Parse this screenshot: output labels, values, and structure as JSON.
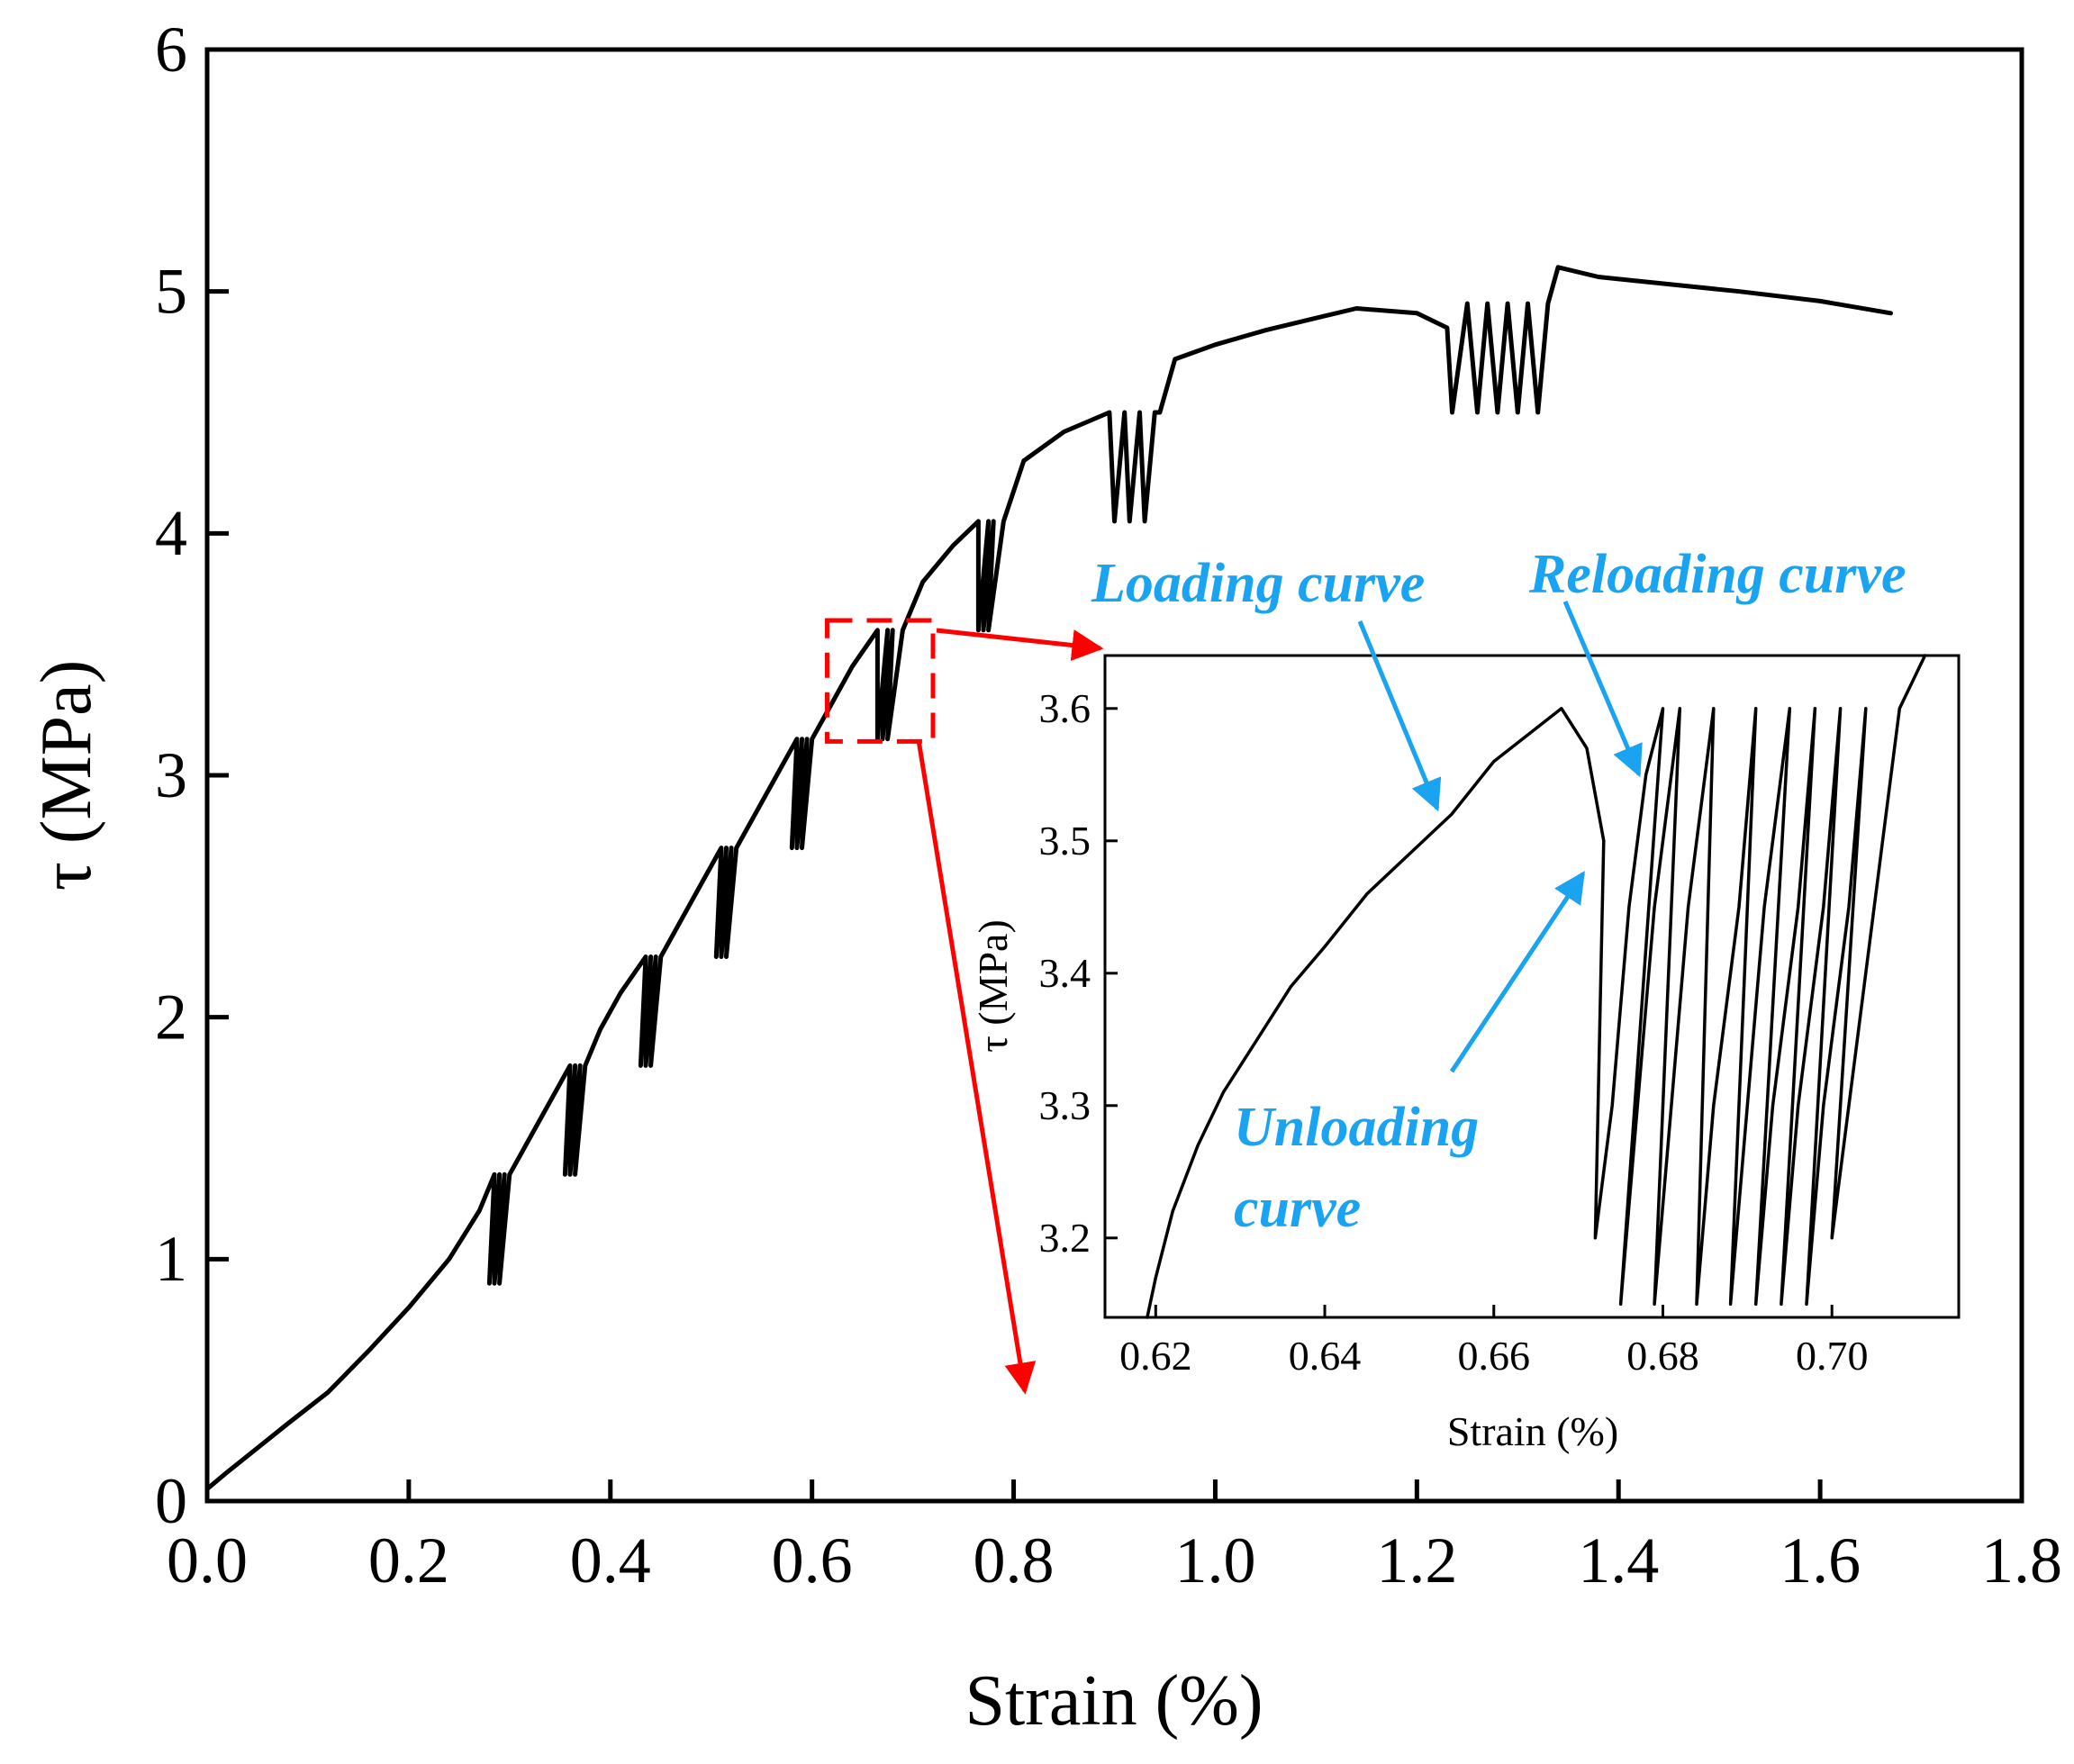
{
  "chart_data": [
    {
      "type": "line",
      "role": "main",
      "xlabel": "Strain (%)",
      "ylabel": "τ (MPa)",
      "xlim": [
        0,
        1.8
      ],
      "ylim": [
        0,
        6
      ],
      "xticks": [
        "0.0",
        "0.2",
        "0.4",
        "0.6",
        "0.8",
        "1.0",
        "1.2",
        "1.4",
        "1.6",
        "1.8"
      ],
      "yticks": [
        "0",
        "1",
        "2",
        "3",
        "4",
        "5",
        "6"
      ],
      "grid": false,
      "series": [
        {
          "color": "#000000",
          "points": [
            [
              0.0,
              0.05
            ],
            [
              0.02,
              0.12
            ],
            [
              0.05,
              0.22
            ],
            [
              0.08,
              0.32
            ],
            [
              0.12,
              0.45
            ],
            [
              0.16,
              0.62
            ],
            [
              0.2,
              0.8
            ],
            [
              0.24,
              1.0
            ],
            [
              0.27,
              1.2
            ],
            [
              0.285,
              1.35
            ],
            [
              0.28,
              0.9
            ],
            [
              0.29,
              1.35
            ],
            [
              0.285,
              0.9
            ],
            [
              0.295,
              1.35
            ],
            [
              0.29,
              0.9
            ],
            [
              0.3,
              1.35
            ],
            [
              0.3,
              1.35
            ],
            [
              0.32,
              1.5
            ],
            [
              0.34,
              1.65
            ],
            [
              0.36,
              1.8
            ],
            [
              0.355,
              1.35
            ],
            [
              0.365,
              1.8
            ],
            [
              0.36,
              1.35
            ],
            [
              0.37,
              1.8
            ],
            [
              0.365,
              1.35
            ],
            [
              0.375,
              1.8
            ],
            [
              0.375,
              1.8
            ],
            [
              0.39,
              1.95
            ],
            [
              0.41,
              2.1
            ],
            [
              0.435,
              2.25
            ],
            [
              0.43,
              1.8
            ],
            [
              0.44,
              2.25
            ],
            [
              0.435,
              1.8
            ],
            [
              0.445,
              2.25
            ],
            [
              0.44,
              1.8
            ],
            [
              0.45,
              2.25
            ],
            [
              0.45,
              2.25
            ],
            [
              0.47,
              2.4
            ],
            [
              0.49,
              2.55
            ],
            [
              0.51,
              2.7
            ],
            [
              0.505,
              2.25
            ],
            [
              0.515,
              2.7
            ],
            [
              0.51,
              2.25
            ],
            [
              0.52,
              2.7
            ],
            [
              0.515,
              2.25
            ],
            [
              0.525,
              2.7
            ],
            [
              0.525,
              2.7
            ],
            [
              0.545,
              2.85
            ],
            [
              0.565,
              3.0
            ],
            [
              0.585,
              3.15
            ],
            [
              0.58,
              2.7
            ],
            [
              0.59,
              3.15
            ],
            [
              0.585,
              2.7
            ],
            [
              0.595,
              3.15
            ],
            [
              0.59,
              2.7
            ],
            [
              0.6,
              3.15
            ],
            [
              0.6,
              3.15
            ],
            [
              0.62,
              3.3
            ],
            [
              0.64,
              3.45
            ],
            [
              0.665,
              3.6
            ],
            [
              0.665,
              3.15
            ],
            [
              0.675,
              3.6
            ],
            [
              0.67,
              3.15
            ],
            [
              0.68,
              3.6
            ],
            [
              0.675,
              3.15
            ],
            [
              0.69,
              3.6
            ],
            [
              0.69,
              3.6
            ],
            [
              0.71,
              3.8
            ],
            [
              0.74,
              3.95
            ],
            [
              0.765,
              4.05
            ],
            [
              0.765,
              3.6
            ],
            [
              0.775,
              4.05
            ],
            [
              0.77,
              3.6
            ],
            [
              0.78,
              4.05
            ],
            [
              0.775,
              3.6
            ],
            [
              0.79,
              4.05
            ],
            [
              0.79,
              4.05
            ],
            [
              0.81,
              4.3
            ],
            [
              0.85,
              4.42
            ],
            [
              0.895,
              4.5
            ],
            [
              0.9,
              4.05
            ],
            [
              0.91,
              4.5
            ],
            [
              0.915,
              4.05
            ],
            [
              0.925,
              4.5
            ],
            [
              0.93,
              4.05
            ],
            [
              0.94,
              4.5
            ],
            [
              0.945,
              4.5
            ],
            [
              0.96,
              4.72
            ],
            [
              1.0,
              4.78
            ],
            [
              1.05,
              4.84
            ],
            [
              1.1,
              4.89
            ],
            [
              1.14,
              4.93
            ],
            [
              1.2,
              4.91
            ],
            [
              1.23,
              4.85
            ],
            [
              1.235,
              4.5
            ],
            [
              1.25,
              4.95
            ],
            [
              1.26,
              4.5
            ],
            [
              1.27,
              4.95
            ],
            [
              1.28,
              4.5
            ],
            [
              1.29,
              4.95
            ],
            [
              1.3,
              4.5
            ],
            [
              1.31,
              4.95
            ],
            [
              1.32,
              4.5
            ],
            [
              1.33,
              4.95
            ],
            [
              1.34,
              5.1
            ],
            [
              1.38,
              5.06
            ],
            [
              1.45,
              5.03
            ],
            [
              1.52,
              5.0
            ],
            [
              1.6,
              4.96
            ],
            [
              1.67,
              4.91
            ]
          ]
        }
      ],
      "zoom_box": {
        "x": [
          0.615,
          0.72
        ],
        "y": [
          3.14,
          3.64
        ],
        "color": "#ff0000",
        "style": "dashed"
      }
    },
    {
      "type": "line",
      "role": "inset",
      "xlabel": "Strain (%)",
      "ylabel": "τ (MPa)",
      "xlim": [
        0.614,
        0.715
      ],
      "ylim": [
        3.14,
        3.64
      ],
      "xticks": [
        "0.62",
        "0.64",
        "0.66",
        "0.68",
        "0.70"
      ],
      "yticks": [
        "3.2",
        "3.3",
        "3.4",
        "3.5",
        "3.6"
      ],
      "grid": false,
      "series": [
        {
          "color": "#000000",
          "points": [
            [
              0.619,
              3.14
            ],
            [
              0.62,
              3.17
            ],
            [
              0.622,
              3.22
            ],
            [
              0.625,
              3.27
            ],
            [
              0.628,
              3.31
            ],
            [
              0.632,
              3.35
            ],
            [
              0.636,
              3.39
            ],
            [
              0.64,
              3.42
            ],
            [
              0.645,
              3.46
            ],
            [
              0.65,
              3.49
            ],
            [
              0.655,
              3.52
            ],
            [
              0.66,
              3.56
            ],
            [
              0.664,
              3.58
            ],
            [
              0.668,
              3.6
            ],
            [
              0.671,
              3.57
            ],
            [
              0.673,
              3.5
            ],
            [
              0.672,
              3.2
            ],
            [
              0.674,
              3.3
            ],
            [
              0.676,
              3.45
            ],
            [
              0.678,
              3.55
            ],
            [
              0.68,
              3.6
            ],
            [
              0.675,
              3.15
            ],
            [
              0.677,
              3.3
            ],
            [
              0.679,
              3.45
            ],
            [
              0.682,
              3.6
            ],
            [
              0.679,
              3.15
            ],
            [
              0.681,
              3.3
            ],
            [
              0.683,
              3.45
            ],
            [
              0.686,
              3.6
            ],
            [
              0.684,
              3.15
            ],
            [
              0.686,
              3.3
            ],
            [
              0.689,
              3.45
            ],
            [
              0.691,
              3.6
            ],
            [
              0.688,
              3.15
            ],
            [
              0.69,
              3.3
            ],
            [
              0.692,
              3.45
            ],
            [
              0.695,
              3.6
            ],
            [
              0.691,
              3.15
            ],
            [
              0.693,
              3.3
            ],
            [
              0.696,
              3.45
            ],
            [
              0.698,
              3.6
            ],
            [
              0.694,
              3.15
            ],
            [
              0.696,
              3.3
            ],
            [
              0.699,
              3.45
            ],
            [
              0.701,
              3.6
            ],
            [
              0.697,
              3.15
            ],
            [
              0.699,
              3.3
            ],
            [
              0.702,
              3.45
            ],
            [
              0.704,
              3.6
            ],
            [
              0.7,
              3.2
            ],
            [
              0.703,
              3.35
            ],
            [
              0.706,
              3.5
            ],
            [
              0.708,
              3.6
            ],
            [
              0.711,
              3.64
            ]
          ]
        }
      ]
    }
  ],
  "annotations": {
    "loading": "Loading curve",
    "reloading": "Reloading curve",
    "unloading_line1": "Unloading",
    "unloading_line2": "curve"
  },
  "colors": {
    "annotation": "#1aa3f0",
    "zoom": "#ff0000",
    "line": "#000000"
  }
}
